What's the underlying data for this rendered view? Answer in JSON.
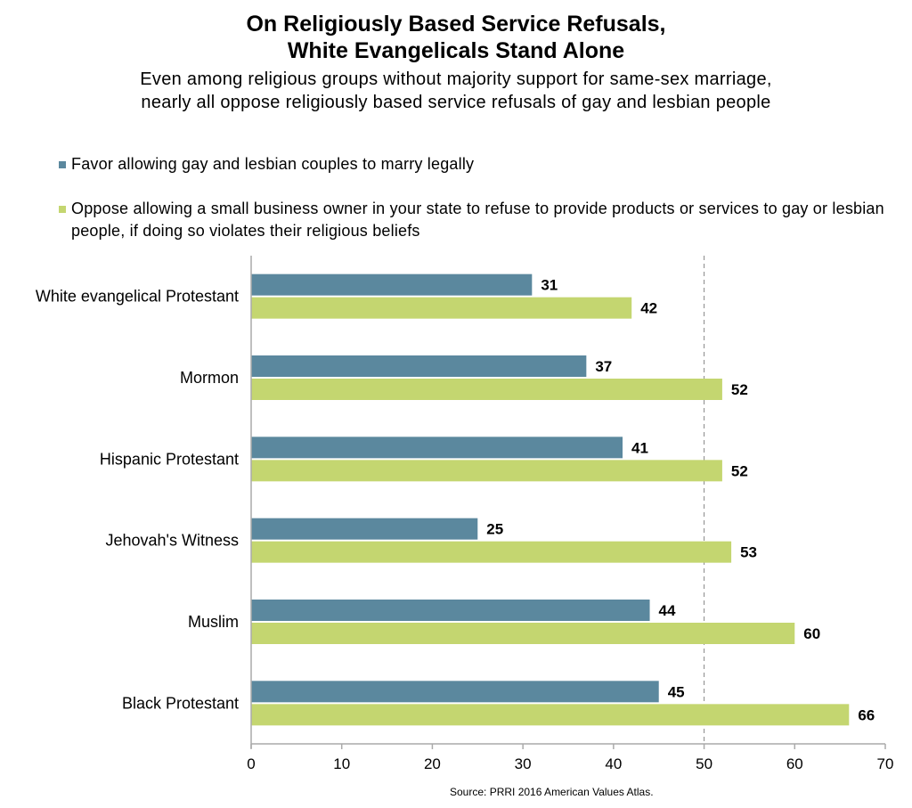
{
  "chart_data": {
    "type": "bar",
    "orientation": "horizontal",
    "title": "On Religiously Based Service Refusals, White Evangelicals Stand Alone",
    "title_lines": [
      "On Religiously Based Service Refusals,",
      "White Evangelicals Stand Alone"
    ],
    "subtitle": "Even among religious groups without majority support for same-sex marriage, nearly all oppose religiously based service refusals of gay and lesbian people",
    "categories": [
      "White evangelical Protestant",
      "Mormon",
      "Hispanic Protestant",
      "Jehovah's Witness",
      "Muslim",
      "Black Protestant"
    ],
    "series": [
      {
        "name": "Favor allowing gay and lesbian couples to marry legally",
        "color": "#5b889e",
        "values": [
          31,
          37,
          41,
          25,
          44,
          45
        ]
      },
      {
        "name": "Oppose allowing a small business owner in your state to refuse to provide products or services to gay or lesbian people, if doing so violates their religious beliefs",
        "color": "#c4d670",
        "values": [
          42,
          52,
          52,
          53,
          60,
          66
        ]
      }
    ],
    "xlim": [
      0,
      70
    ],
    "xticks": [
      0,
      10,
      20,
      30,
      40,
      50,
      60,
      70
    ],
    "reference_line": 50,
    "grid": false,
    "legend_placement": "top-left",
    "source": "Source: PRRI 2016 American Values Atlas."
  }
}
